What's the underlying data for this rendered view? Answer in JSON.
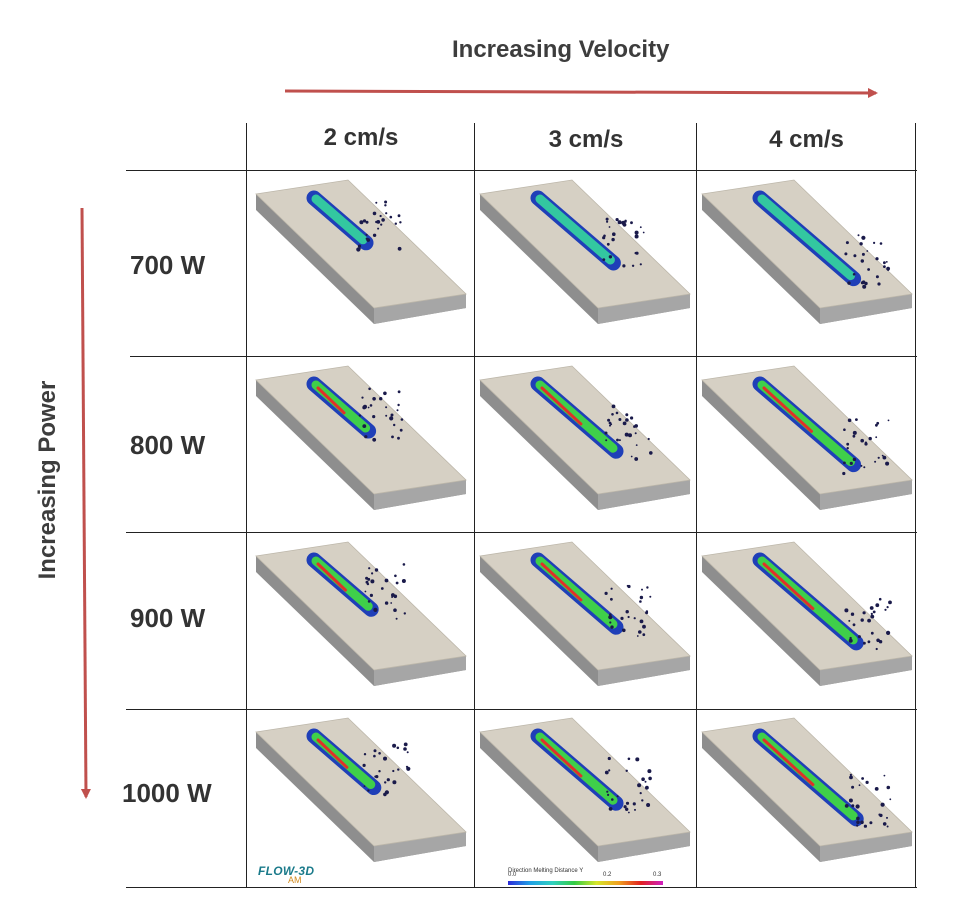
{
  "headers": {
    "velocity_title": "Increasing Velocity",
    "power_title": "Increasing Power",
    "velocities": [
      "2 cm/s",
      "3 cm/s",
      "4 cm/s"
    ],
    "powers": [
      "700 W",
      "800 W",
      "900 W",
      "1000 W"
    ]
  },
  "arrow_color": "#c0504d",
  "logo": {
    "main": "FLOW-3D",
    "sub": "AM"
  },
  "legend": {
    "title": "Direction Melting Distance Y",
    "ticks": [
      "0.0",
      "0.2",
      "0.3"
    ]
  },
  "cells": [
    [
      {
        "power": "700 W",
        "velocity": "2 cm/s",
        "track": 0.4
      },
      {
        "power": "700 W",
        "velocity": "3 cm/s",
        "track": 0.58
      },
      {
        "power": "700 W",
        "velocity": "4 cm/s",
        "track": 0.72
      }
    ],
    [
      {
        "power": "800 W",
        "velocity": "2 cm/s",
        "track": 0.42
      },
      {
        "power": "800 W",
        "velocity": "3 cm/s",
        "track": 0.6
      },
      {
        "power": "800 W",
        "velocity": "4 cm/s",
        "track": 0.72
      }
    ],
    [
      {
        "power": "900 W",
        "velocity": "2 cm/s",
        "track": 0.44
      },
      {
        "power": "900 W",
        "velocity": "3 cm/s",
        "track": 0.6
      },
      {
        "power": "900 W",
        "velocity": "4 cm/s",
        "track": 0.74
      }
    ],
    [
      {
        "power": "1000 W",
        "velocity": "2 cm/s",
        "track": 0.46
      },
      {
        "power": "1000 W",
        "velocity": "3 cm/s",
        "track": 0.6
      },
      {
        "power": "1000 W",
        "velocity": "4 cm/s",
        "track": 0.74
      }
    ]
  ]
}
